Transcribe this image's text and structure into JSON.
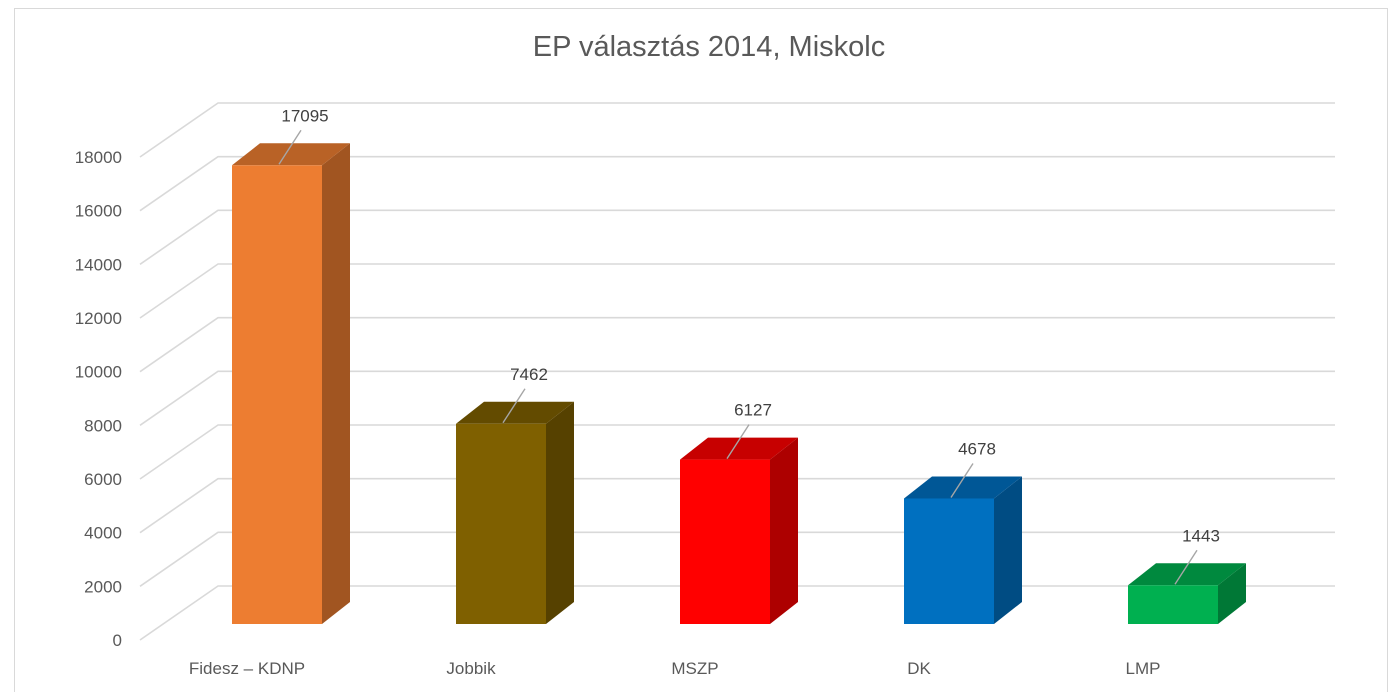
{
  "chart_data": {
    "type": "bar",
    "title": "EP választás 2014, Miskolc",
    "categories": [
      "Fidesz – KDNP",
      "Jobbik",
      "MSZP",
      "DK",
      "LMP"
    ],
    "values": [
      17095,
      7462,
      6127,
      4678,
      1443
    ],
    "colors": [
      "#ed7d31",
      "#7f6000",
      "#ff0000",
      "#0070c0",
      "#00b050"
    ],
    "ylim": [
      0,
      18000
    ],
    "yticks": [
      "0",
      "2000",
      "4000",
      "6000",
      "8000",
      "10000",
      "12000",
      "14000",
      "16000",
      "18000"
    ],
    "grid": true,
    "legend": "none",
    "style": "3d-column"
  }
}
